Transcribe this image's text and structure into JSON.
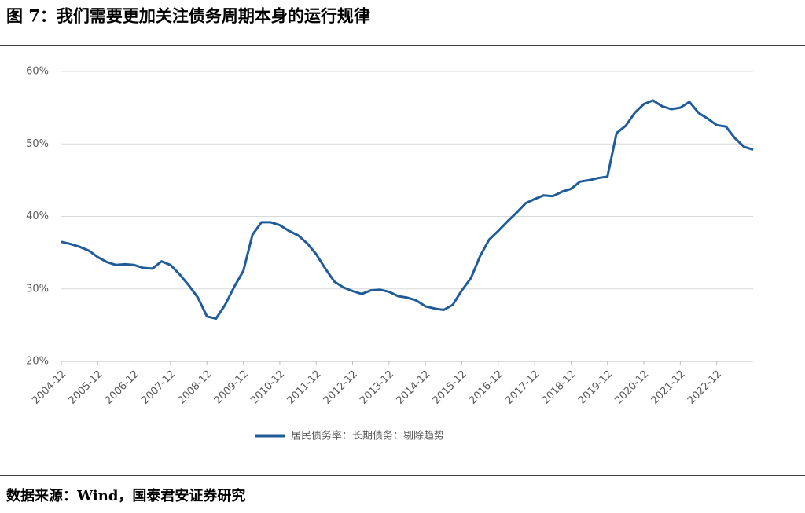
{
  "title": "图 7：我们需要更加关注债务周期本身的运行规律",
  "source": "数据来源：Wind，国泰君安证券研究",
  "chart_data": {
    "type": "line",
    "x": [
      "2004-12",
      "2005-03",
      "2005-06",
      "2005-09",
      "2005-12",
      "2006-03",
      "2006-06",
      "2006-09",
      "2006-12",
      "2007-03",
      "2007-06",
      "2007-09",
      "2007-12",
      "2008-03",
      "2008-06",
      "2008-09",
      "2008-12",
      "2009-03",
      "2009-06",
      "2009-09",
      "2009-12",
      "2010-03",
      "2010-06",
      "2010-09",
      "2010-12",
      "2011-03",
      "2011-06",
      "2011-09",
      "2011-12",
      "2012-03",
      "2012-06",
      "2012-09",
      "2012-12",
      "2013-03",
      "2013-06",
      "2013-09",
      "2013-12",
      "2014-03",
      "2014-06",
      "2014-09",
      "2014-12",
      "2015-03",
      "2015-06",
      "2015-09",
      "2015-12",
      "2016-03",
      "2016-06",
      "2016-09",
      "2016-12",
      "2017-03",
      "2017-06",
      "2017-09",
      "2017-12",
      "2018-03",
      "2018-06",
      "2018-09",
      "2018-12",
      "2019-03",
      "2019-06",
      "2019-09",
      "2019-12",
      "2020-03",
      "2020-06",
      "2020-09",
      "2020-12",
      "2021-03",
      "2021-06",
      "2021-09",
      "2021-12",
      "2022-03",
      "2022-06",
      "2022-09",
      "2022-12",
      "2023-03",
      "2023-06",
      "2023-09",
      "2023-12"
    ],
    "series": [
      {
        "name": "居民债务率：长期债务：剔除趋势",
        "color": "#1f5c99",
        "values": [
          36.5,
          36.2,
          35.8,
          35.3,
          34.4,
          33.7,
          33.3,
          33.4,
          33.3,
          32.9,
          32.8,
          33.8,
          33.3,
          32.0,
          30.5,
          28.8,
          26.2,
          25.9,
          27.8,
          30.3,
          32.5,
          37.5,
          39.2,
          39.2,
          38.8,
          38.0,
          37.4,
          36.3,
          34.8,
          32.8,
          31.0,
          30.2,
          29.7,
          29.3,
          29.8,
          29.9,
          29.6,
          29.0,
          28.8,
          28.4,
          27.6,
          27.3,
          27.1,
          27.8,
          29.8,
          31.5,
          34.5,
          36.8,
          38.0,
          39.3,
          40.5,
          41.8,
          42.4,
          42.9,
          42.8,
          43.4,
          43.8,
          44.8,
          45.0,
          45.3,
          45.5,
          51.5,
          52.5,
          54.3,
          55.5,
          56.0,
          55.2,
          54.8,
          55.0,
          55.8,
          54.3,
          53.5,
          52.6,
          52.4,
          50.8,
          49.6,
          49.2
        ]
      }
    ],
    "xticks": [
      "2004-12",
      "2005-12",
      "2006-12",
      "2007-12",
      "2008-12",
      "2009-12",
      "2010-12",
      "2011-12",
      "2012-12",
      "2013-12",
      "2014-12",
      "2015-12",
      "2016-12",
      "2017-12",
      "2018-12",
      "2019-12",
      "2020-12",
      "2021-12",
      "2022-12"
    ],
    "ylim": [
      20,
      60
    ],
    "yticks": [
      {
        "value": 20,
        "label": "20%"
      },
      {
        "value": 30,
        "label": "30%"
      },
      {
        "value": 40,
        "label": "40%"
      },
      {
        "value": 50,
        "label": "50%"
      },
      {
        "value": 60,
        "label": "60%"
      }
    ],
    "grid": true
  }
}
